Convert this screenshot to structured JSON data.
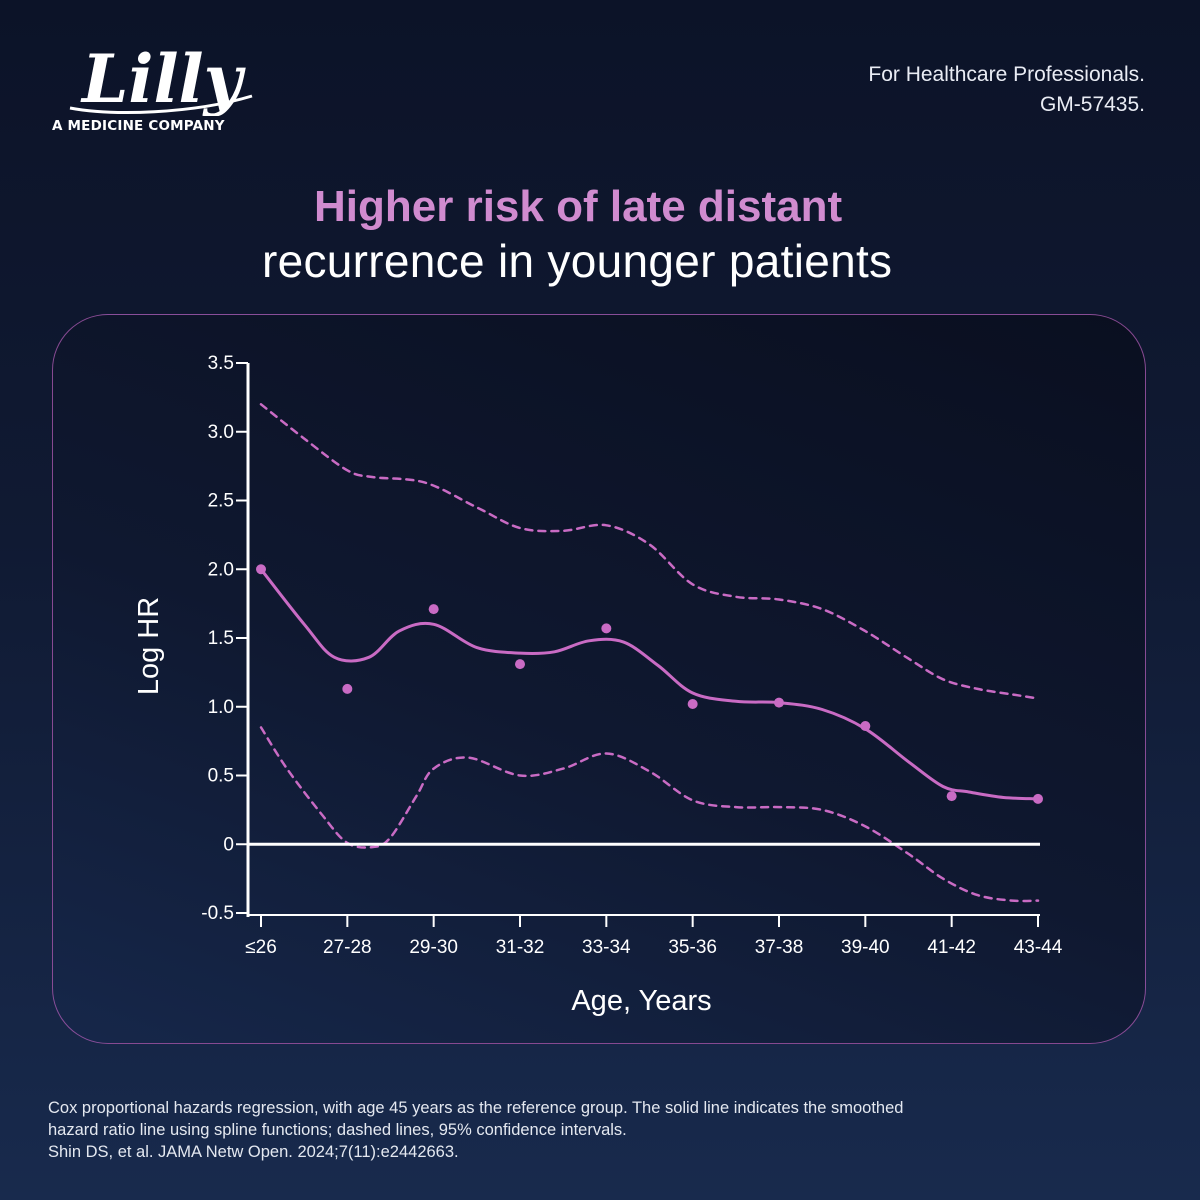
{
  "brand": {
    "logo_text": "Lilly",
    "tagline": "A MEDICINE COMPANY"
  },
  "header": {
    "audience": "For Healthcare Professionals.",
    "code": "GM-57435."
  },
  "title": {
    "line1": "Higher risk of late distant",
    "line2": "recurrence in younger patients"
  },
  "colors": {
    "accent": "#d08bcf",
    "curve": "#c96bc4",
    "axis": "#ffffff",
    "background": "#101a33"
  },
  "chart_data": {
    "type": "line",
    "xlabel": "Age, Years",
    "ylabel": "Log HR",
    "categories": [
      "≤26",
      "27-28",
      "29-30",
      "31-32",
      "33-34",
      "35-36",
      "37-38",
      "39-40",
      "41-42",
      "43-44"
    ],
    "ylim": [
      -0.5,
      3.5
    ],
    "yticks": [
      -0.5,
      0,
      0.5,
      1.0,
      1.5,
      2.0,
      2.5,
      3.0,
      3.5
    ],
    "ytick_labels": [
      "-0.5",
      "0",
      "0.5",
      "1.0",
      "1.5",
      "2.0",
      "2.5",
      "3.0",
      "3.5"
    ],
    "reference_line": 0,
    "points": [
      {
        "x": 0.0,
        "y": 2.0
      },
      {
        "x": 1.0,
        "y": 1.13
      },
      {
        "x": 2.0,
        "y": 1.71
      },
      {
        "x": 3.0,
        "y": 1.31
      },
      {
        "x": 4.0,
        "y": 1.57
      },
      {
        "x": 5.0,
        "y": 1.02
      },
      {
        "x": 6.0,
        "y": 1.03
      },
      {
        "x": 7.0,
        "y": 0.86
      },
      {
        "x": 8.0,
        "y": 0.35
      },
      {
        "x": 9.0,
        "y": 0.33
      }
    ],
    "series": [
      {
        "name": "Smoothed hazard ratio",
        "style": "solid",
        "x": [
          0.0,
          0.5,
          0.85,
          1.25,
          1.6,
          2.0,
          2.5,
          3.0,
          3.4,
          3.8,
          4.2,
          4.6,
          5.0,
          5.5,
          6.0,
          6.5,
          7.0,
          7.5,
          7.9,
          8.2,
          8.6,
          9.0
        ],
        "y": [
          2.0,
          1.6,
          1.36,
          1.36,
          1.55,
          1.6,
          1.43,
          1.39,
          1.4,
          1.48,
          1.47,
          1.3,
          1.1,
          1.04,
          1.03,
          0.98,
          0.84,
          0.6,
          0.42,
          0.38,
          0.34,
          0.33
        ]
      },
      {
        "name": "95% CI upper",
        "style": "dashed",
        "x": [
          0.0,
          0.5,
          1.0,
          1.3,
          1.9,
          2.5,
          3.0,
          3.5,
          4.0,
          4.5,
          5.0,
          5.5,
          6.0,
          6.5,
          7.0,
          7.5,
          7.9,
          8.3,
          8.7,
          9.0
        ],
        "y": [
          3.2,
          2.95,
          2.72,
          2.67,
          2.63,
          2.45,
          2.3,
          2.28,
          2.32,
          2.18,
          1.89,
          1.8,
          1.78,
          1.71,
          1.55,
          1.35,
          1.2,
          1.13,
          1.09,
          1.06
        ]
      },
      {
        "name": "95% CI lower",
        "style": "dashed",
        "x": [
          0.0,
          0.3,
          0.7,
          1.0,
          1.3,
          1.5,
          1.8,
          2.0,
          2.4,
          3.0,
          3.5,
          4.0,
          4.5,
          5.0,
          5.5,
          6.0,
          6.5,
          7.0,
          7.5,
          7.9,
          8.3,
          8.7,
          9.0
        ],
        "y": [
          0.85,
          0.55,
          0.22,
          0.01,
          -0.02,
          0.05,
          0.35,
          0.55,
          0.63,
          0.5,
          0.55,
          0.66,
          0.53,
          0.32,
          0.27,
          0.27,
          0.25,
          0.13,
          -0.07,
          -0.25,
          -0.37,
          -0.41,
          -0.41
        ]
      }
    ]
  },
  "footnote": {
    "line1": "Cox proportional hazards regression, with age 45 years as the reference group. The solid line indicates the smoothed",
    "line2": "hazard ratio line using spline functions; dashed lines, 95% confidence intervals.",
    "line3": "Shin DS, et al. JAMA Netw Open. 2024;7(11):e2442663."
  }
}
